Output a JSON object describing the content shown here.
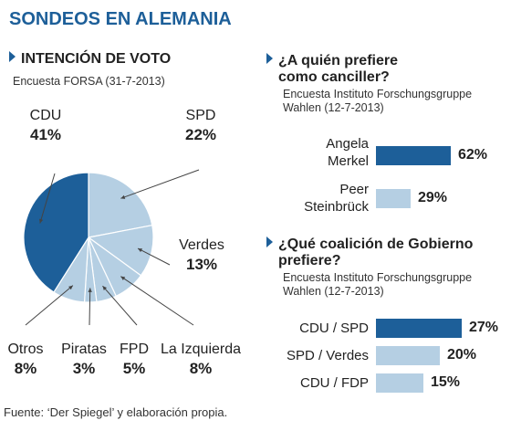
{
  "title": "SONDEOS EN ALEMANIA",
  "colors": {
    "dark": "#1d5f99",
    "light": "#b5cfe3",
    "title": "#1d5f99"
  },
  "vote": {
    "heading": "INTENCIÓN DE VOTO",
    "subtitle": "Encuesta FORSA (31-7-2013)"
  },
  "chancellor": {
    "heading_line1": "¿A quién prefiere",
    "heading_line2": "como canciller?",
    "source_line1": "Encuesta Instituto Forschungsgruppe",
    "source_line2": "Wahlen (12-7-2013)"
  },
  "coalition": {
    "heading_line1": "¿Qué coalición de Gobierno",
    "heading_line2": "prefiere?",
    "source_line1": "Encuesta Instituto Forschungsgruppe",
    "source_line2": "Wahlen (12-7-2013)"
  },
  "footer": "Fuente: ‘Der Spiegel’ y elaboración propia.",
  "chart_data": [
    {
      "type": "pie",
      "title": "INTENCIÓN DE VOTO",
      "categories": [
        "SPD",
        "Verdes",
        "La Izquierda",
        "FPD",
        "Piratas",
        "Otros",
        "CDU"
      ],
      "values": [
        22,
        13,
        8,
        5,
        3,
        8,
        41
      ],
      "value_labels": [
        "22%",
        "13%",
        "8%",
        "5%",
        "3%",
        "8%",
        "41%"
      ],
      "slice_colors": [
        "light",
        "light",
        "light",
        "light",
        "light",
        "light",
        "dark"
      ]
    },
    {
      "type": "bar",
      "orientation": "horizontal",
      "title": "¿A quién prefiere como canciller?",
      "categories": [
        [
          "Angela",
          "Merkel"
        ],
        [
          "Peer",
          "Steinbrück"
        ]
      ],
      "values": [
        62,
        29
      ],
      "value_labels": [
        "62%",
        "29%"
      ],
      "bar_colors": [
        "dark",
        "light"
      ],
      "xlim": [
        0,
        62
      ]
    },
    {
      "type": "bar",
      "orientation": "horizontal",
      "title": "¿Qué coalición de Gobierno prefiere?",
      "categories": [
        "CDU / SPD",
        "SPD / Verdes",
        "CDU / FDP"
      ],
      "values": [
        27,
        20,
        15
      ],
      "value_labels": [
        "27%",
        "20%",
        "15%"
      ],
      "bar_colors": [
        "dark",
        "light",
        "light"
      ],
      "xlim": [
        0,
        27
      ]
    }
  ]
}
